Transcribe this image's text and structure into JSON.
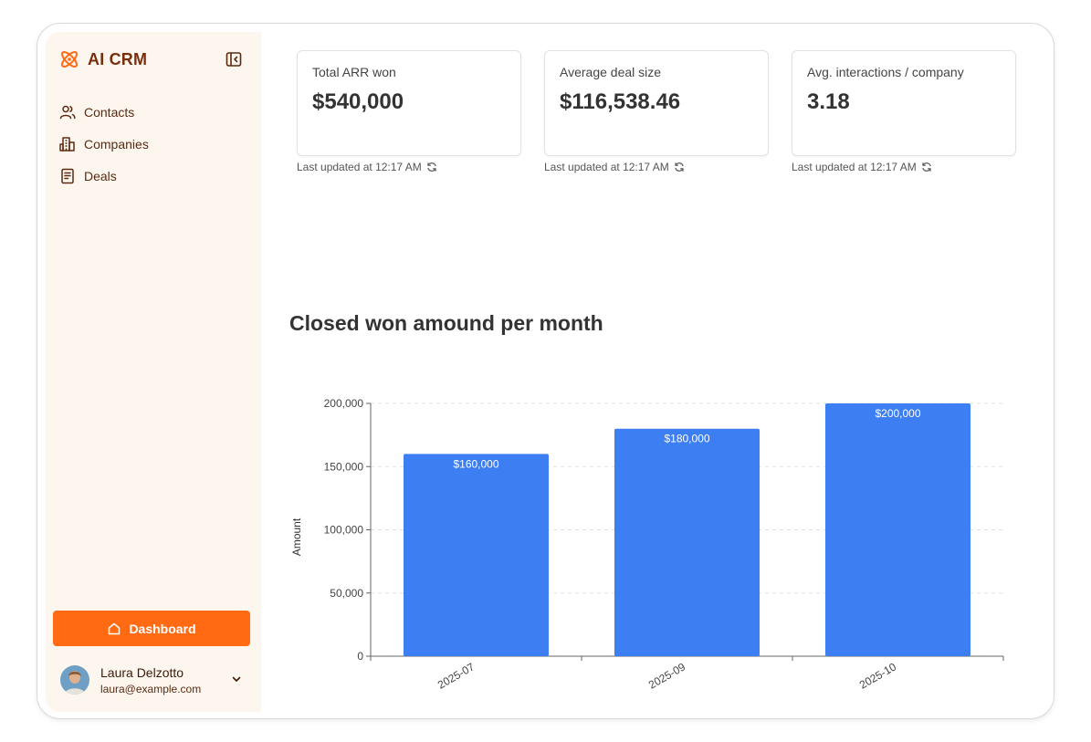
{
  "app": {
    "name": "AI CRM"
  },
  "sidebar": {
    "nav": [
      {
        "label": "Contacts",
        "icon": "users-icon"
      },
      {
        "label": "Companies",
        "icon": "building-icon"
      },
      {
        "label": "Deals",
        "icon": "document-icon"
      }
    ],
    "dashboard_label": "Dashboard",
    "user": {
      "name": "Laura Delzotto",
      "email": "laura@example.com"
    }
  },
  "cards": [
    {
      "label": "Total ARR won",
      "value": "$540,000",
      "updated": "Last updated at 12:17 AM"
    },
    {
      "label": "Average deal size",
      "value": "$116,538.46",
      "updated": "Last updated at 12:17 AM"
    },
    {
      "label": "Avg. interactions / company",
      "value": "3.18",
      "updated": "Last updated at 12:17 AM"
    }
  ],
  "colors": {
    "accent": "#ff6a13",
    "brand_text": "#7a2e0e",
    "bar": "#3e7ef3",
    "sidebar_bg": "#fdf6ef"
  },
  "chart_data": {
    "type": "bar",
    "title": "Closed won amound per month",
    "categories": [
      "2025-07",
      "2025-09",
      "2025-10"
    ],
    "values": [
      160000,
      180000,
      200000
    ],
    "data_labels": [
      "$160,000",
      "$180,000",
      "$200,000"
    ],
    "ylabel": "Amount",
    "xlabel": "",
    "ylim": [
      0,
      200000
    ],
    "yticks": [
      0,
      50000,
      100000,
      150000,
      200000
    ],
    "ytick_labels": [
      "0",
      "50,000",
      "100,000",
      "150,000",
      "200,000"
    ],
    "grid": "horizontal dashed"
  }
}
